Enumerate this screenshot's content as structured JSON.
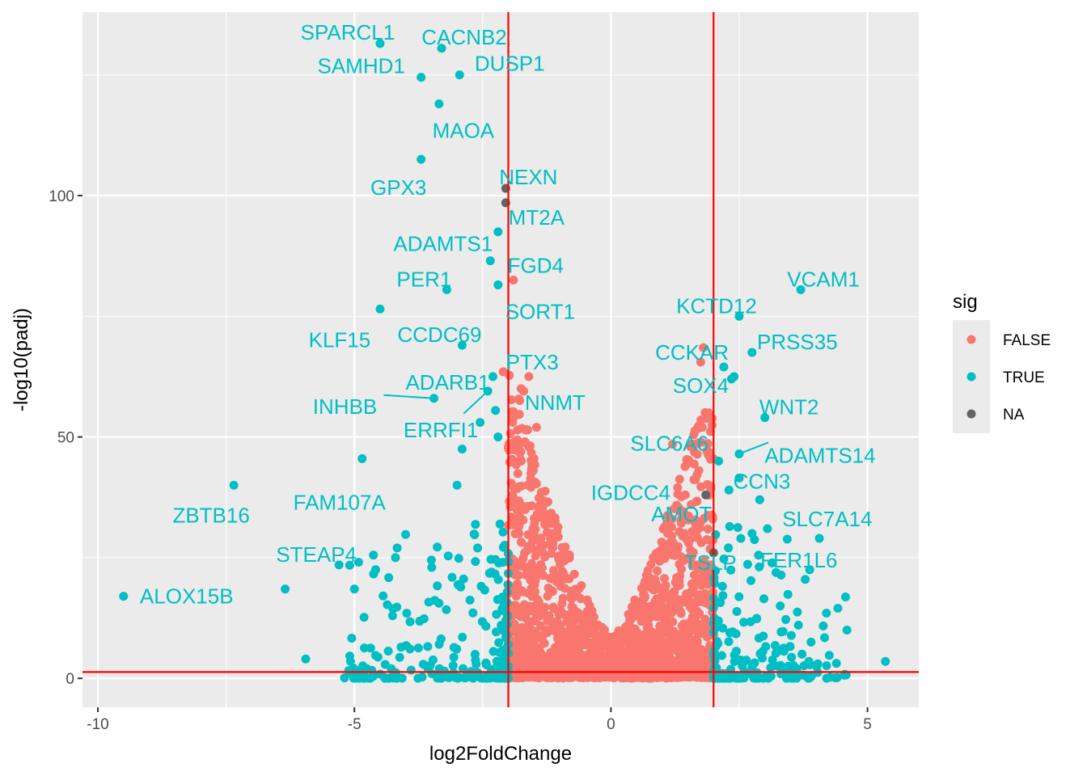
{
  "chart_data": {
    "type": "scatter",
    "xlabel": "log2FoldChange",
    "ylabel": "-log10(padj)",
    "xlim": [
      -10.3,
      6.0
    ],
    "ylim": [
      -6,
      138
    ],
    "x_ticks": [
      -10,
      -5,
      0,
      5
    ],
    "x_tick_labels": [
      "-10",
      "-5",
      "0",
      "5"
    ],
    "y_ticks": [
      0,
      50,
      100
    ],
    "y_tick_labels": [
      "0",
      "50",
      "100"
    ],
    "grid": true,
    "thresholds": {
      "vlines": [
        -2,
        2
      ],
      "hline": 1.3,
      "color": "#ff0000"
    },
    "legend": {
      "title": "sig",
      "position": "right",
      "entries": [
        {
          "label": "FALSE",
          "color": "#F8766D"
        },
        {
          "label": "TRUE",
          "color": "#00BFC4"
        },
        {
          "label": "NA",
          "color": "#636363"
        }
      ]
    },
    "colors": {
      "FALSE": "#F8766D",
      "TRUE": "#00BFC4",
      "NA": "#636363",
      "panel": "#EBEBEB",
      "grid": "#FFFFFF"
    },
    "labeled_points": [
      {
        "gene": "SPARCL1",
        "x": -4.5,
        "y": 131.5,
        "sig": "TRUE"
      },
      {
        "gene": "CACNB2",
        "x": -3.3,
        "y": 130.5,
        "sig": "TRUE"
      },
      {
        "gene": "SAMHD1",
        "x": -3.7,
        "y": 124.5,
        "sig": "TRUE"
      },
      {
        "gene": "DUSP1",
        "x": -2.95,
        "y": 125.0,
        "sig": "TRUE"
      },
      {
        "gene": "MAOA",
        "x": -3.35,
        "y": 119.0,
        "sig": "TRUE"
      },
      {
        "gene": "GPX3",
        "x": -3.7,
        "y": 107.5,
        "sig": "TRUE"
      },
      {
        "gene": "NEXN",
        "x": -2.05,
        "y": 101.5,
        "sig": "NA"
      },
      {
        "gene": "MT2A",
        "x": -2.05,
        "y": 98.5,
        "sig": "NA"
      },
      {
        "gene": "ADAMTS1",
        "x": -2.2,
        "y": 92.5,
        "sig": "TRUE"
      },
      {
        "gene": "FGD4",
        "x": -2.35,
        "y": 86.5,
        "sig": "TRUE"
      },
      {
        "gene": "PER1",
        "x": -3.2,
        "y": 80.5,
        "sig": "TRUE"
      },
      {
        "gene": "SORT1",
        "x": -2.2,
        "y": 81.5,
        "sig": "TRUE"
      },
      {
        "gene": "VCAM1",
        "x": 3.7,
        "y": 80.5,
        "sig": "TRUE"
      },
      {
        "gene": "KLF15",
        "x": -4.5,
        "y": 76.5,
        "sig": "TRUE"
      },
      {
        "gene": "KCTD12",
        "x": 2.5,
        "y": 75.0,
        "sig": "TRUE"
      },
      {
        "gene": "CCDC69",
        "x": -2.9,
        "y": 69.0,
        "sig": "TRUE"
      },
      {
        "gene": "PRSS35",
        "x": 2.75,
        "y": 67.5,
        "sig": "TRUE"
      },
      {
        "gene": "CCKAR",
        "x": 1.8,
        "y": 68.5,
        "sig": "FALSE"
      },
      {
        "gene": "PTX3",
        "x": -2.1,
        "y": 63.5,
        "sig": "FALSE"
      },
      {
        "gene": "ADARB1",
        "x": -2.3,
        "y": 62.5,
        "sig": "TRUE"
      },
      {
        "gene": "NNMT",
        "x": -1.75,
        "y": 60.0,
        "sig": "FALSE"
      },
      {
        "gene": "INHBB",
        "x": -3.45,
        "y": 58.0,
        "sig": "TRUE"
      },
      {
        "gene": "ERRFI1",
        "x": -2.4,
        "y": 59.5,
        "sig": "TRUE"
      },
      {
        "gene": "SOX4",
        "x": 2.35,
        "y": 62.0,
        "sig": "TRUE"
      },
      {
        "gene": "WNT2",
        "x": 3.0,
        "y": 54.0,
        "sig": "TRUE"
      },
      {
        "gene": "ADAMTS14",
        "x": 2.5,
        "y": 46.5,
        "sig": "TRUE"
      },
      {
        "gene": "SLC6A6",
        "x": 1.55,
        "y": 48.0,
        "sig": "FALSE"
      },
      {
        "gene": "FAM107A",
        "x": -4.85,
        "y": 45.5,
        "sig": "TRUE"
      },
      {
        "gene": "IGDCC4",
        "x": 1.3,
        "y": 39.5,
        "sig": "FALSE"
      },
      {
        "gene": "CCN3",
        "x": 2.5,
        "y": 41.5,
        "sig": "TRUE"
      },
      {
        "gene": "ZBTB16",
        "x": -7.35,
        "y": 40.0,
        "sig": "TRUE"
      },
      {
        "gene": "AMOT",
        "x": 1.85,
        "y": 38.0,
        "sig": "NA"
      },
      {
        "gene": "SLC7A14",
        "x": 3.05,
        "y": 31.0,
        "sig": "TRUE"
      },
      {
        "gene": "TSLP",
        "x": 2.0,
        "y": 26.0,
        "sig": "NA"
      },
      {
        "gene": "FER1L6",
        "x": 2.75,
        "y": 30.0,
        "sig": "TRUE"
      },
      {
        "gene": "STEAP4",
        "x": -5.3,
        "y": 23.5,
        "sig": "TRUE"
      },
      {
        "gene": "ALOX15B",
        "x": -9.5,
        "y": 17.0,
        "sig": "TRUE"
      }
    ],
    "extra_points": [
      {
        "x": -6.35,
        "y": 18.5,
        "sig": "TRUE"
      },
      {
        "x": -5.95,
        "y": 4.0,
        "sig": "TRUE"
      },
      {
        "x": -5.0,
        "y": 18.5,
        "sig": "TRUE"
      },
      {
        "x": -4.2,
        "y": 25.0,
        "sig": "TRUE"
      },
      {
        "x": -3.5,
        "y": 24.5,
        "sig": "TRUE"
      },
      {
        "x": -3.0,
        "y": 40.0,
        "sig": "TRUE"
      },
      {
        "x": -2.9,
        "y": 47.5,
        "sig": "TRUE"
      },
      {
        "x": -2.55,
        "y": 53.0,
        "sig": "TRUE"
      },
      {
        "x": -2.25,
        "y": 55.5,
        "sig": "TRUE"
      },
      {
        "x": -2.2,
        "y": 50.0,
        "sig": "TRUE"
      },
      {
        "x": -1.9,
        "y": 82.5,
        "sig": "FALSE"
      },
      {
        "x": -1.6,
        "y": 62.5,
        "sig": "FALSE"
      },
      {
        "x": -1.7,
        "y": 59.5,
        "sig": "FALSE"
      },
      {
        "x": -1.9,
        "y": 54.0,
        "sig": "FALSE"
      },
      {
        "x": -1.45,
        "y": 52.0,
        "sig": "FALSE"
      },
      {
        "x": 1.75,
        "y": 65.5,
        "sig": "FALSE"
      },
      {
        "x": 2.2,
        "y": 64.5,
        "sig": "TRUE"
      },
      {
        "x": 2.4,
        "y": 62.5,
        "sig": "TRUE"
      },
      {
        "x": 2.9,
        "y": 37.0,
        "sig": "TRUE"
      },
      {
        "x": 2.3,
        "y": 39.0,
        "sig": "TRUE"
      },
      {
        "x": 2.1,
        "y": 45.0,
        "sig": "TRUE"
      },
      {
        "x": 1.2,
        "y": 48.5,
        "sig": "FALSE"
      },
      {
        "x": 4.6,
        "y": 10.0,
        "sig": "TRUE"
      },
      {
        "x": 4.2,
        "y": 13.5,
        "sig": "TRUE"
      },
      {
        "x": 5.35,
        "y": 3.5,
        "sig": "TRUE"
      },
      {
        "x": 3.3,
        "y": 15.0,
        "sig": "TRUE"
      },
      {
        "x": 3.9,
        "y": 7.5,
        "sig": "TRUE"
      }
    ],
    "scatter_cloud": {
      "FALSE_x_ranges": [
        [
          -2.0,
          0
        ],
        [
          0,
          2.0
        ]
      ],
      "TRUE_x_ranges": [
        [
          -9.5,
          -2.0
        ],
        [
          2.0,
          5.4
        ]
      ],
      "y_range": [
        0,
        70
      ]
    }
  }
}
